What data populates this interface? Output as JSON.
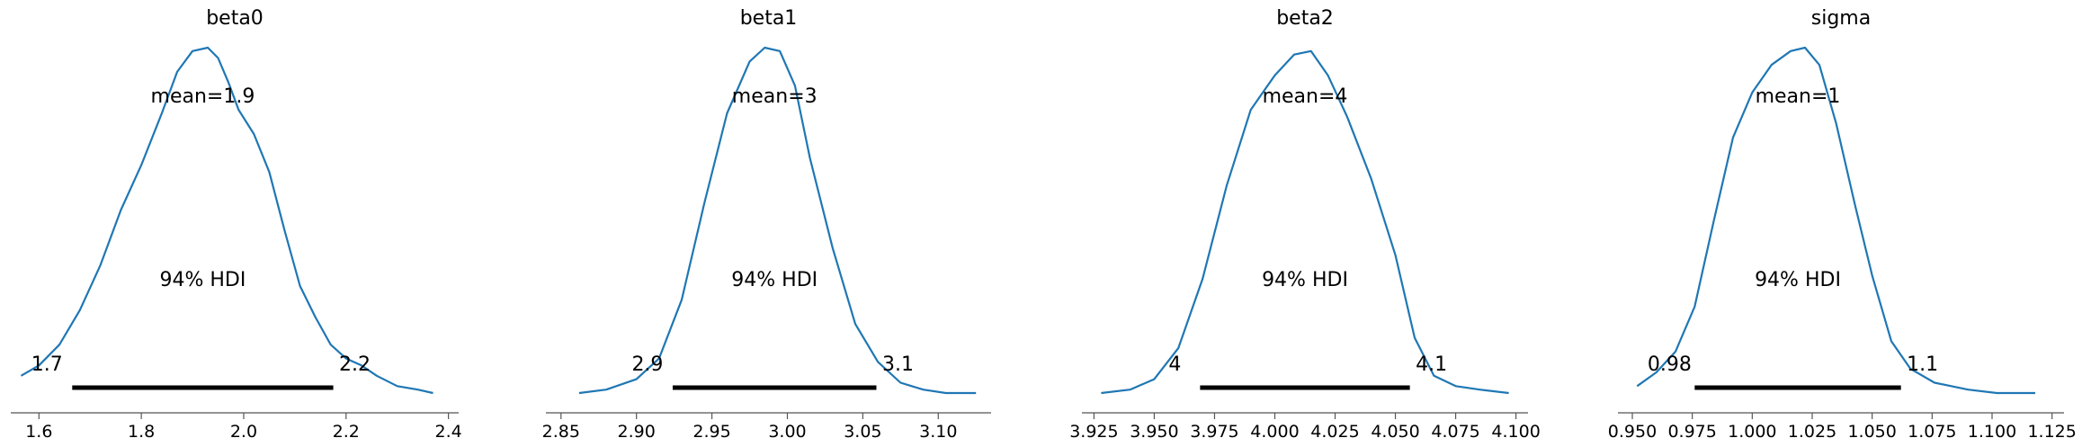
{
  "chart_data": [
    {
      "type": "line",
      "title": "beta0",
      "xlim": [
        1.545,
        2.42
      ],
      "xticks": [
        1.6,
        1.8,
        2.0,
        2.2,
        2.4
      ],
      "tick_labels": [
        "1.6",
        "1.8",
        "2.0",
        "2.2",
        "2.4"
      ],
      "mean_label": "mean=1.9",
      "hdi_label": "94% HDI",
      "hdi": [
        1.665,
        2.175
      ],
      "hdi_low_label": "1.7",
      "hdi_high_label": "2.2",
      "density_x": [
        1.565,
        1.6,
        1.64,
        1.68,
        1.72,
        1.76,
        1.8,
        1.84,
        1.87,
        1.9,
        1.93,
        1.95,
        1.97,
        1.99,
        2.02,
        2.05,
        2.08,
        2.11,
        2.14,
        2.17,
        2.2,
        2.23,
        2.26,
        2.3,
        2.34,
        2.37
      ],
      "density_y": [
        0.05,
        0.08,
        0.14,
        0.24,
        0.37,
        0.53,
        0.66,
        0.81,
        0.93,
        0.99,
        1.0,
        0.97,
        0.9,
        0.82,
        0.75,
        0.64,
        0.47,
        0.31,
        0.22,
        0.14,
        0.1,
        0.08,
        0.05,
        0.02,
        0.01,
        0.0
      ]
    },
    {
      "type": "line",
      "title": "beta1",
      "xlim": [
        2.84,
        3.135
      ],
      "xticks": [
        2.85,
        2.9,
        2.95,
        3.0,
        3.05,
        3.1
      ],
      "tick_labels": [
        "2.85",
        "2.90",
        "2.95",
        "3.00",
        "3.05",
        "3.10"
      ],
      "mean_label": "mean=3",
      "hdi_label": "94% HDI",
      "hdi": [
        2.924,
        3.059
      ],
      "hdi_low_label": "2.9",
      "hdi_high_label": "3.1",
      "density_x": [
        2.862,
        2.88,
        2.9,
        2.915,
        2.93,
        2.945,
        2.96,
        2.975,
        2.985,
        2.995,
        3.005,
        3.015,
        3.03,
        3.045,
        3.06,
        3.075,
        3.09,
        3.105,
        3.125
      ],
      "density_y": [
        0.0,
        0.01,
        0.04,
        0.1,
        0.27,
        0.55,
        0.81,
        0.96,
        1.0,
        0.99,
        0.89,
        0.68,
        0.42,
        0.2,
        0.09,
        0.03,
        0.01,
        0.0,
        0.0
      ]
    },
    {
      "type": "line",
      "title": "beta2",
      "xlim": [
        3.92,
        4.105
      ],
      "xticks": [
        3.925,
        3.95,
        3.975,
        4.0,
        4.025,
        4.05,
        4.075,
        4.1
      ],
      "tick_labels": [
        "3.925",
        "3.950",
        "3.975",
        "4.000",
        "4.025",
        "4.050",
        "4.075",
        "4.100"
      ],
      "mean_label": "mean=4",
      "hdi_label": "94% HDI",
      "hdi": [
        3.969,
        4.056
      ],
      "hdi_low_label": "4",
      "hdi_high_label": "4.1",
      "density_x": [
        3.928,
        3.94,
        3.95,
        3.96,
        3.97,
        3.98,
        3.99,
        4.0,
        4.008,
        4.015,
        4.022,
        4.03,
        4.04,
        4.05,
        4.058,
        4.066,
        4.075,
        4.085,
        4.097
      ],
      "density_y": [
        0.0,
        0.01,
        0.04,
        0.13,
        0.33,
        0.6,
        0.82,
        0.92,
        0.98,
        0.99,
        0.92,
        0.8,
        0.62,
        0.4,
        0.16,
        0.05,
        0.02,
        0.01,
        0.0
      ]
    },
    {
      "type": "line",
      "title": "sigma",
      "xlim": [
        0.944,
        1.13
      ],
      "xticks": [
        0.95,
        0.975,
        1.0,
        1.025,
        1.05,
        1.075,
        1.1,
        1.125
      ],
      "tick_labels": [
        "0.950",
        "0.975",
        "1.000",
        "1.025",
        "1.050",
        "1.075",
        "1.100",
        "1.125"
      ],
      "mean_label": "mean=1",
      "hdi_label": "94% HDI",
      "hdi": [
        0.976,
        1.062
      ],
      "hdi_low_label": "0.98",
      "hdi_high_label": "1.1",
      "density_x": [
        0.952,
        0.96,
        0.968,
        0.976,
        0.984,
        0.992,
        1.0,
        1.008,
        1.016,
        1.022,
        1.028,
        1.035,
        1.043,
        1.05,
        1.058,
        1.066,
        1.076,
        1.09,
        1.102,
        1.118
      ],
      "density_y": [
        0.02,
        0.06,
        0.12,
        0.25,
        0.5,
        0.74,
        0.87,
        0.95,
        0.99,
        1.0,
        0.95,
        0.78,
        0.54,
        0.34,
        0.15,
        0.07,
        0.03,
        0.01,
        0.0,
        0.0
      ]
    }
  ],
  "colors": {
    "curve": "#1f77b4",
    "hdi_bar": "#000000",
    "axis": "#555555"
  }
}
